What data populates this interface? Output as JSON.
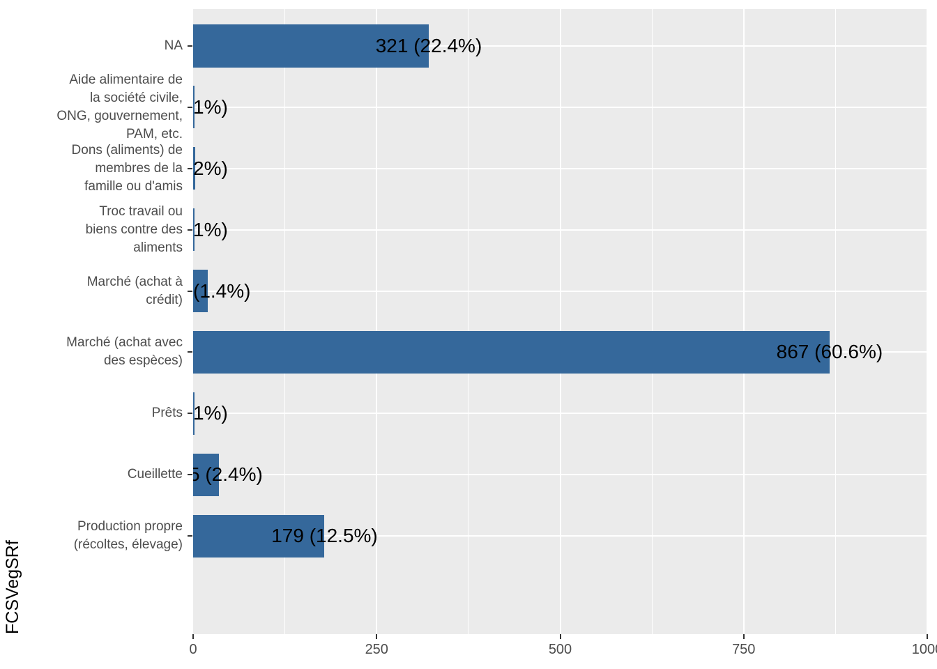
{
  "figure": {
    "y_axis_title": "FCSVegSRf"
  },
  "chart_data": {
    "type": "bar",
    "orientation": "horizontal",
    "title": "",
    "xlabel": "",
    "ylabel": "FCSVegSRf",
    "xlim": [
      0,
      1000
    ],
    "x_major_ticks": [
      "0",
      "250",
      "500",
      "750",
      "1000"
    ],
    "x_major_tick_values": [
      0,
      250,
      500,
      750,
      1000
    ],
    "x_minor_tick_values": [
      125,
      375,
      625,
      875
    ],
    "grid": "white major+minor vertical lines and major horizontal lines on grey panel",
    "legend": "none",
    "colors": {
      "bar_fill": "#35689B",
      "panel_bg": "#EBEBEB",
      "gridline": "#FFFFFF",
      "axis_text": "#4D4D4D",
      "tick_mark": "#333333",
      "bar_label_text": "#000000",
      "outer_bg": "#FFFFFF"
    },
    "rows": [
      {
        "category": "NA",
        "category_lines": [
          "NA"
        ],
        "value": 321,
        "bar_label": "321 (22.4%)",
        "bar_label_placement": "center",
        "bar_label_offset": 0
      },
      {
        "category": "Aide alimentaire de la société civile, ONG, gouvernement, PAM, etc.",
        "category_lines": [
          "Aide alimentaire de",
          "la société civile,",
          "ONG, gouvernement,",
          "PAM, etc."
        ],
        "value": 2,
        "bar_label": "1%)",
        "bar_label_placement": "panel-edge",
        "bar_label_offset": 0
      },
      {
        "category": "Dons (aliments) de membres de la famille ou d'amis",
        "category_lines": [
          "Dons (aliments) de",
          "membres de la",
          "famille ou d'amis"
        ],
        "value": 3,
        "bar_label": "2%)",
        "bar_label_placement": "panel-edge",
        "bar_label_offset": 0
      },
      {
        "category": "Troc travail ou biens contre des aliments",
        "category_lines": [
          "Troc travail ou",
          "biens contre des",
          "aliments"
        ],
        "value": 2,
        "bar_label": "1%)",
        "bar_label_placement": "panel-edge",
        "bar_label_offset": 0
      },
      {
        "category": "Marché (achat à crédit)",
        "category_lines": [
          "Marché (achat à",
          "crédit)"
        ],
        "value": 20,
        "bar_label": "(1.4%)",
        "bar_label_placement": "panel-edge",
        "bar_label_offset": 0
      },
      {
        "category": "Marché (achat avec des espèces)",
        "category_lines": [
          "Marché (achat avec",
          "des espèces)"
        ],
        "value": 867,
        "bar_label": "867 (60.6%)",
        "bar_label_placement": "center",
        "bar_label_offset": 0
      },
      {
        "category": "Prêts",
        "category_lines": [
          "Prêts"
        ],
        "value": 2,
        "bar_label": "1%)",
        "bar_label_placement": "panel-edge",
        "bar_label_offset": 0
      },
      {
        "category": "Cueillette",
        "category_lines": [
          "Cueillette"
        ],
        "value": 35,
        "bar_label": "5 (2.4%)",
        "bar_label_placement": "panel-edge",
        "bar_label_offset": -6
      },
      {
        "category": "Production propre (récoltes, élevage)",
        "category_lines": [
          "Production propre",
          "(récoltes, élevage)"
        ],
        "value": 179,
        "bar_label": "179 (12.5%)",
        "bar_label_placement": "center",
        "bar_label_offset": 0
      }
    ]
  }
}
